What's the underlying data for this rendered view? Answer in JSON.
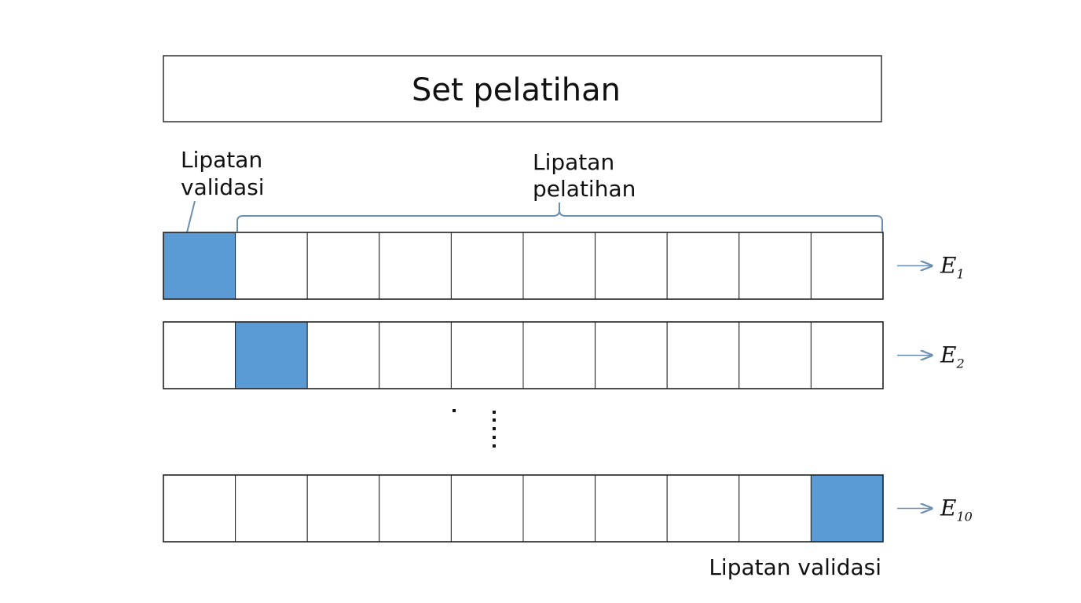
{
  "diagram": {
    "title": "Set pelatihan",
    "validation_fold_label_lines": [
      "Lipatan",
      "validasi"
    ],
    "training_fold_label_lines": [
      "Lipatan",
      "pelatihan"
    ],
    "bottom_label": "Lipatan validasi",
    "folds_per_row": 10,
    "rows": [
      {
        "validation_index": 0,
        "output_base": "E",
        "output_sub": "1"
      },
      {
        "validation_index": 1,
        "output_base": "E",
        "output_sub": "2"
      },
      {
        "validation_index": 9,
        "output_base": "E",
        "output_sub": "10"
      }
    ],
    "colors": {
      "validation_fill": "#5b9bd5",
      "training_fill": "#ffffff",
      "line": "#222222",
      "accent": "#6b8fb0"
    }
  }
}
